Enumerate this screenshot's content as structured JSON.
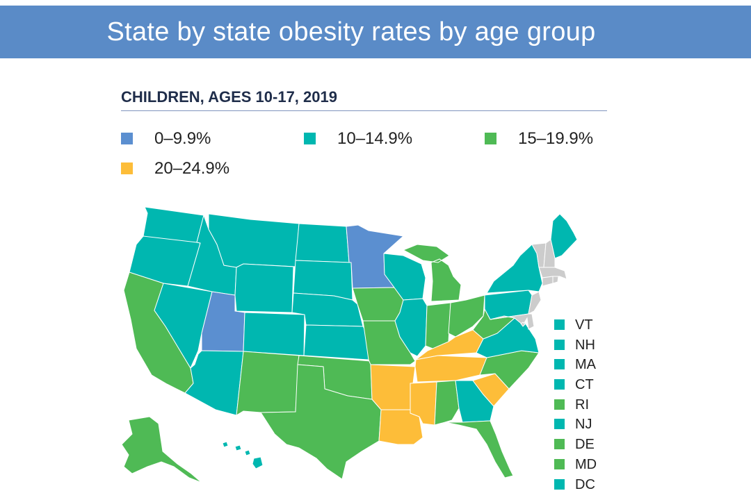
{
  "title": "State by state obesity rates by age group",
  "subtitle": "CHILDREN, AGES 10-17, 2019",
  "colors": {
    "banner": "#5a8bc7",
    "c0": "#5b8fd0",
    "c1": "#00b7b0",
    "c2": "#4fba55",
    "c3": "#fdbd39"
  },
  "legend": [
    {
      "label": "0–9.9%",
      "color": "#5b8fd0"
    },
    {
      "label": "10–14.9%",
      "color": "#00b7b0"
    },
    {
      "label": "15–19.9%",
      "color": "#4fba55"
    },
    {
      "label": "20–24.9%",
      "color": "#fdbd39"
    }
  ],
  "small_states": [
    {
      "abbr": "VT",
      "category": "10–14.9%"
    },
    {
      "abbr": "NH",
      "category": "10–14.9%"
    },
    {
      "abbr": "MA",
      "category": "10–14.9%"
    },
    {
      "abbr": "CT",
      "category": "10–14.9%"
    },
    {
      "abbr": "RI",
      "category": "15–19.9%"
    },
    {
      "abbr": "NJ",
      "category": "10–14.9%"
    },
    {
      "abbr": "DE",
      "category": "15–19.9%"
    },
    {
      "abbr": "MD",
      "category": "15–19.9%"
    },
    {
      "abbr": "DC",
      "category": "10–14.9%"
    }
  ],
  "states": {
    "WA": "10–14.9%",
    "OR": "10–14.9%",
    "CA": "15–19.9%",
    "NV": "10–14.9%",
    "ID": "10–14.9%",
    "MT": "10–14.9%",
    "WY": "10–14.9%",
    "UT": "0–9.9%",
    "AZ": "10–14.9%",
    "CO": "10–14.9%",
    "NM": "15–19.9%",
    "ND": "10–14.9%",
    "SD": "10–14.9%",
    "NE": "10–14.9%",
    "KS": "10–14.9%",
    "OK": "15–19.9%",
    "TX": "15–19.9%",
    "MN": "0–9.9%",
    "IA": "15–19.9%",
    "MO": "15–19.9%",
    "AR": "20–24.9%",
    "LA": "20–24.9%",
    "WI": "10–14.9%",
    "IL": "10–14.9%",
    "MI": "15–19.9%",
    "IN": "15–19.9%",
    "OH": "15–19.9%",
    "KY": "20–24.9%",
    "TN": "20–24.9%",
    "MS": "20–24.9%",
    "AL": "15–19.9%",
    "GA": "10–14.9%",
    "FL": "15–19.9%",
    "SC": "20–24.9%",
    "NC": "15–19.9%",
    "VA": "10–14.9%",
    "WV": "15–19.9%",
    "PA": "10–14.9%",
    "NY": "10–14.9%",
    "ME": "10–14.9%",
    "AK": "15–19.9%",
    "HI": "10–14.9%"
  }
}
